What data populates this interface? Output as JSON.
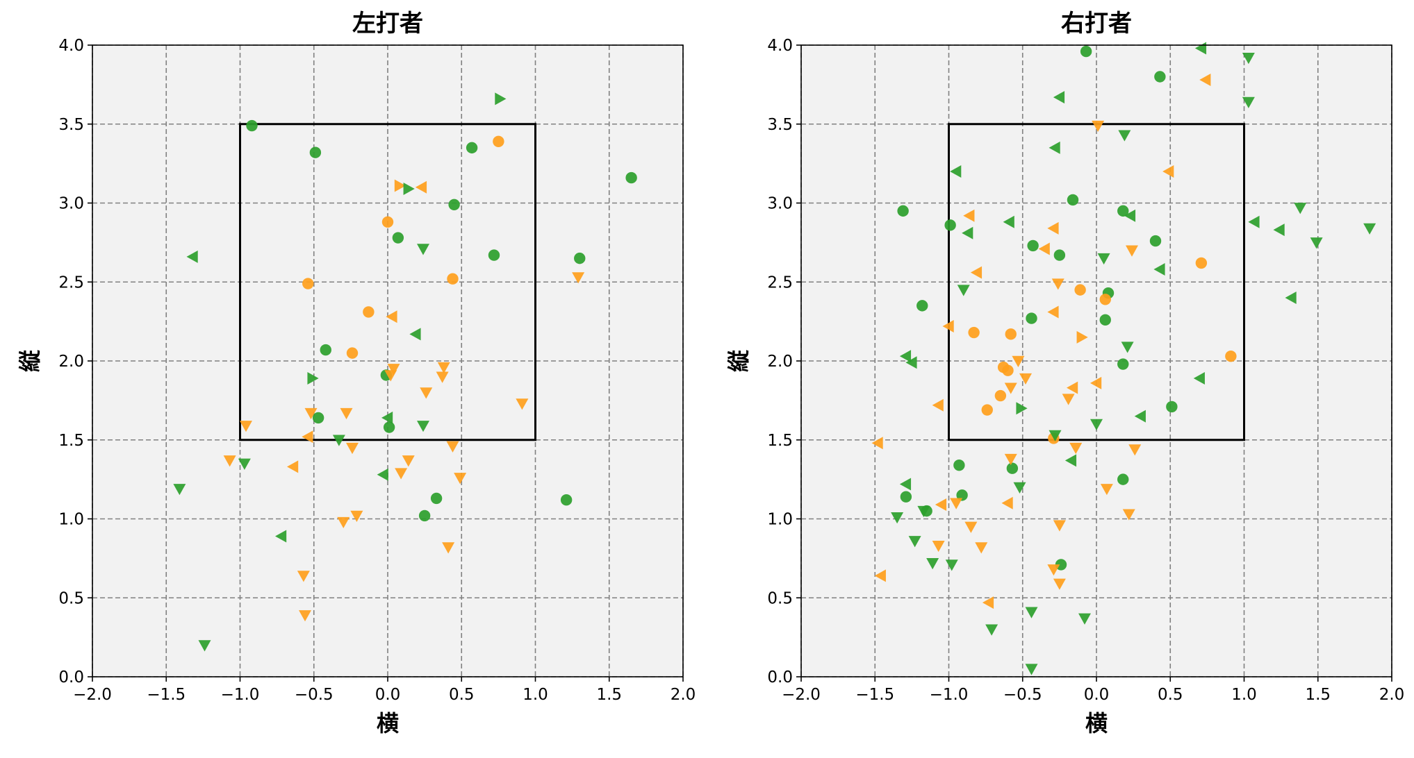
{
  "chart_data": [
    {
      "type": "scatter",
      "title": "左打者",
      "xlabel": "横",
      "ylabel": "縦",
      "xlim": [
        -2.0,
        2.0
      ],
      "ylim": [
        0.0,
        4.0
      ],
      "x_ticks": [
        "−2.0",
        "−1.5",
        "−1.0",
        "−0.5",
        "0.0",
        "0.5",
        "1.0",
        "1.5",
        "2.0"
      ],
      "y_ticks": [
        "0.0",
        "0.5",
        "1.0",
        "1.5",
        "2.0",
        "2.5",
        "3.0",
        "3.5",
        "4.0"
      ],
      "grid": true,
      "strike_zone": {
        "x": [
          -1.0,
          1.0
        ],
        "y": [
          1.5,
          3.5
        ]
      },
      "colors": {
        "green": "#2ca02c",
        "orange": "#ff9f1c",
        "background": "#f2f2f2"
      },
      "points": [
        {
          "x": -0.92,
          "y": 3.49,
          "m": "o",
          "c": "green"
        },
        {
          "x": -0.49,
          "y": 3.32,
          "m": "o",
          "c": "green"
        },
        {
          "x": 0.57,
          "y": 3.35,
          "m": "o",
          "c": "green"
        },
        {
          "x": 0.75,
          "y": 3.39,
          "m": "o",
          "c": "orange"
        },
        {
          "x": 1.65,
          "y": 3.16,
          "m": "o",
          "c": "green"
        },
        {
          "x": 0.45,
          "y": 2.99,
          "m": "o",
          "c": "green"
        },
        {
          "x": 0.0,
          "y": 2.88,
          "m": "o",
          "c": "orange"
        },
        {
          "x": 0.07,
          "y": 2.78,
          "m": "o",
          "c": "green"
        },
        {
          "x": 0.72,
          "y": 2.67,
          "m": "o",
          "c": "green"
        },
        {
          "x": 1.3,
          "y": 2.65,
          "m": "o",
          "c": "green"
        },
        {
          "x": -0.54,
          "y": 2.49,
          "m": "o",
          "c": "orange"
        },
        {
          "x": 0.44,
          "y": 2.52,
          "m": "o",
          "c": "orange"
        },
        {
          "x": -0.13,
          "y": 2.31,
          "m": "o",
          "c": "orange"
        },
        {
          "x": -0.42,
          "y": 2.07,
          "m": "o",
          "c": "green"
        },
        {
          "x": -0.24,
          "y": 2.05,
          "m": "o",
          "c": "orange"
        },
        {
          "x": -0.01,
          "y": 1.91,
          "m": "o",
          "c": "green"
        },
        {
          "x": -0.47,
          "y": 1.64,
          "m": "o",
          "c": "green"
        },
        {
          "x": 0.01,
          "y": 1.58,
          "m": "o",
          "c": "green"
        },
        {
          "x": 0.33,
          "y": 1.13,
          "m": "o",
          "c": "green"
        },
        {
          "x": 0.25,
          "y": 1.02,
          "m": "o",
          "c": "green"
        },
        {
          "x": 1.21,
          "y": 1.12,
          "m": "o",
          "c": "green"
        },
        {
          "x": 0.76,
          "y": 3.66,
          "m": ">",
          "c": "green"
        },
        {
          "x": 0.08,
          "y": 3.11,
          "m": ">",
          "c": "orange"
        },
        {
          "x": 0.14,
          "y": 3.09,
          "m": ">",
          "c": "green"
        },
        {
          "x": 0.23,
          "y": 3.1,
          "m": "<",
          "c": "orange"
        },
        {
          "x": -1.32,
          "y": 2.66,
          "m": "<",
          "c": "green"
        },
        {
          "x": 0.24,
          "y": 2.71,
          "m": "v",
          "c": "green"
        },
        {
          "x": 1.29,
          "y": 2.53,
          "m": "v",
          "c": "orange"
        },
        {
          "x": 0.03,
          "y": 2.28,
          "m": "<",
          "c": "orange"
        },
        {
          "x": 0.19,
          "y": 2.17,
          "m": "<",
          "c": "green"
        },
        {
          "x": 0.38,
          "y": 1.96,
          "m": "v",
          "c": "orange"
        },
        {
          "x": 0.37,
          "y": 1.9,
          "m": "v",
          "c": "orange"
        },
        {
          "x": 0.04,
          "y": 1.95,
          "m": "v",
          "c": "orange"
        },
        {
          "x": 0.02,
          "y": 1.91,
          "m": "v",
          "c": "orange"
        },
        {
          "x": -0.51,
          "y": 1.89,
          "m": ">",
          "c": "green"
        },
        {
          "x": 0.26,
          "y": 1.8,
          "m": "v",
          "c": "orange"
        },
        {
          "x": 0.91,
          "y": 1.73,
          "m": "v",
          "c": "orange"
        },
        {
          "x": -0.52,
          "y": 1.67,
          "m": "v",
          "c": "orange"
        },
        {
          "x": -0.28,
          "y": 1.67,
          "m": "v",
          "c": "orange"
        },
        {
          "x": 0.0,
          "y": 1.64,
          "m": "<",
          "c": "green"
        },
        {
          "x": -0.96,
          "y": 1.59,
          "m": "v",
          "c": "orange"
        },
        {
          "x": 0.24,
          "y": 1.59,
          "m": "v",
          "c": "green"
        },
        {
          "x": -0.54,
          "y": 1.52,
          "m": "<",
          "c": "orange"
        },
        {
          "x": -0.33,
          "y": 1.5,
          "m": "v",
          "c": "green"
        },
        {
          "x": -0.24,
          "y": 1.45,
          "m": "v",
          "c": "orange"
        },
        {
          "x": 0.44,
          "y": 1.46,
          "m": "v",
          "c": "orange"
        },
        {
          "x": -1.07,
          "y": 1.37,
          "m": "v",
          "c": "orange"
        },
        {
          "x": 0.14,
          "y": 1.37,
          "m": "v",
          "c": "orange"
        },
        {
          "x": -0.97,
          "y": 1.35,
          "m": "v",
          "c": "green"
        },
        {
          "x": -0.64,
          "y": 1.33,
          "m": "<",
          "c": "orange"
        },
        {
          "x": 0.09,
          "y": 1.29,
          "m": "v",
          "c": "orange"
        },
        {
          "x": -0.03,
          "y": 1.28,
          "m": "<",
          "c": "green"
        },
        {
          "x": 0.49,
          "y": 1.26,
          "m": "v",
          "c": "orange"
        },
        {
          "x": -1.41,
          "y": 1.19,
          "m": "v",
          "c": "green"
        },
        {
          "x": -0.21,
          "y": 1.02,
          "m": "v",
          "c": "orange"
        },
        {
          "x": -0.3,
          "y": 0.98,
          "m": "v",
          "c": "orange"
        },
        {
          "x": -0.72,
          "y": 0.89,
          "m": "<",
          "c": "green"
        },
        {
          "x": 0.41,
          "y": 0.82,
          "m": "v",
          "c": "orange"
        },
        {
          "x": -0.57,
          "y": 0.64,
          "m": "v",
          "c": "orange"
        },
        {
          "x": -0.56,
          "y": 0.39,
          "m": "v",
          "c": "orange"
        },
        {
          "x": -1.24,
          "y": 0.2,
          "m": "v",
          "c": "green"
        }
      ]
    },
    {
      "type": "scatter",
      "title": "右打者",
      "xlabel": "横",
      "ylabel": "縦",
      "xlim": [
        -2.0,
        2.0
      ],
      "ylim": [
        0.0,
        4.0
      ],
      "x_ticks": [
        "−2.0",
        "−1.5",
        "−1.0",
        "−0.5",
        "0.0",
        "0.5",
        "1.0",
        "1.5",
        "2.0"
      ],
      "y_ticks": [
        "0.0",
        "0.5",
        "1.0",
        "1.5",
        "2.0",
        "2.5",
        "3.0",
        "3.5",
        "4.0"
      ],
      "grid": true,
      "strike_zone": {
        "x": [
          -1.0,
          1.0
        ],
        "y": [
          1.5,
          3.5
        ]
      },
      "colors": {
        "green": "#2ca02c",
        "orange": "#ff9f1c",
        "background": "#f2f2f2"
      },
      "points": [
        {
          "x": -0.07,
          "y": 3.96,
          "m": "o",
          "c": "green"
        },
        {
          "x": 0.43,
          "y": 3.8,
          "m": "o",
          "c": "green"
        },
        {
          "x": -0.16,
          "y": 3.02,
          "m": "o",
          "c": "green"
        },
        {
          "x": -1.31,
          "y": 2.95,
          "m": "o",
          "c": "green"
        },
        {
          "x": 0.18,
          "y": 2.95,
          "m": "o",
          "c": "green"
        },
        {
          "x": -0.99,
          "y": 2.86,
          "m": "o",
          "c": "green"
        },
        {
          "x": -0.43,
          "y": 2.73,
          "m": "o",
          "c": "green"
        },
        {
          "x": -0.25,
          "y": 2.67,
          "m": "o",
          "c": "green"
        },
        {
          "x": 0.4,
          "y": 2.76,
          "m": "o",
          "c": "green"
        },
        {
          "x": 0.71,
          "y": 2.62,
          "m": "o",
          "c": "orange"
        },
        {
          "x": -0.11,
          "y": 2.45,
          "m": "o",
          "c": "orange"
        },
        {
          "x": 0.08,
          "y": 2.43,
          "m": "o",
          "c": "green"
        },
        {
          "x": 0.06,
          "y": 2.39,
          "m": "o",
          "c": "orange"
        },
        {
          "x": -1.18,
          "y": 2.35,
          "m": "o",
          "c": "green"
        },
        {
          "x": -0.44,
          "y": 2.27,
          "m": "o",
          "c": "green"
        },
        {
          "x": 0.06,
          "y": 2.26,
          "m": "o",
          "c": "green"
        },
        {
          "x": -0.83,
          "y": 2.18,
          "m": "o",
          "c": "orange"
        },
        {
          "x": -0.58,
          "y": 2.17,
          "m": "o",
          "c": "orange"
        },
        {
          "x": 0.91,
          "y": 2.03,
          "m": "o",
          "c": "orange"
        },
        {
          "x": 0.18,
          "y": 1.98,
          "m": "o",
          "c": "green"
        },
        {
          "x": -0.63,
          "y": 1.96,
          "m": "o",
          "c": "orange"
        },
        {
          "x": -0.6,
          "y": 1.94,
          "m": "o",
          "c": "orange"
        },
        {
          "x": -0.65,
          "y": 1.78,
          "m": "o",
          "c": "orange"
        },
        {
          "x": 0.51,
          "y": 1.71,
          "m": "o",
          "c": "green"
        },
        {
          "x": -0.74,
          "y": 1.69,
          "m": "o",
          "c": "orange"
        },
        {
          "x": -0.29,
          "y": 1.51,
          "m": "o",
          "c": "orange"
        },
        {
          "x": -0.93,
          "y": 1.34,
          "m": "o",
          "c": "green"
        },
        {
          "x": -0.57,
          "y": 1.32,
          "m": "o",
          "c": "green"
        },
        {
          "x": 0.18,
          "y": 1.25,
          "m": "o",
          "c": "green"
        },
        {
          "x": -0.91,
          "y": 1.15,
          "m": "o",
          "c": "green"
        },
        {
          "x": -1.29,
          "y": 1.14,
          "m": "o",
          "c": "green"
        },
        {
          "x": -1.15,
          "y": 1.05,
          "m": "o",
          "c": "green"
        },
        {
          "x": -0.24,
          "y": 0.71,
          "m": "o",
          "c": "green"
        },
        {
          "x": 0.71,
          "y": 3.98,
          "m": "<",
          "c": "green"
        },
        {
          "x": 1.03,
          "y": 3.92,
          "m": "v",
          "c": "green"
        },
        {
          "x": 0.74,
          "y": 3.78,
          "m": "<",
          "c": "orange"
        },
        {
          "x": -0.25,
          "y": 3.67,
          "m": "<",
          "c": "green"
        },
        {
          "x": 1.03,
          "y": 3.64,
          "m": "v",
          "c": "green"
        },
        {
          "x": 0.01,
          "y": 3.49,
          "m": "v",
          "c": "orange"
        },
        {
          "x": 0.19,
          "y": 3.43,
          "m": "v",
          "c": "green"
        },
        {
          "x": -0.28,
          "y": 3.35,
          "m": "<",
          "c": "green"
        },
        {
          "x": -0.95,
          "y": 3.2,
          "m": "<",
          "c": "green"
        },
        {
          "x": 0.49,
          "y": 3.2,
          "m": "<",
          "c": "orange"
        },
        {
          "x": 1.38,
          "y": 2.97,
          "m": "v",
          "c": "green"
        },
        {
          "x": -0.86,
          "y": 2.92,
          "m": "<",
          "c": "orange"
        },
        {
          "x": 0.23,
          "y": 2.92,
          "m": "<",
          "c": "green"
        },
        {
          "x": 1.07,
          "y": 2.88,
          "m": "<",
          "c": "green"
        },
        {
          "x": -0.59,
          "y": 2.88,
          "m": "<",
          "c": "green"
        },
        {
          "x": 1.85,
          "y": 2.84,
          "m": "v",
          "c": "green"
        },
        {
          "x": -0.29,
          "y": 2.84,
          "m": "<",
          "c": "orange"
        },
        {
          "x": 1.24,
          "y": 2.83,
          "m": "<",
          "c": "green"
        },
        {
          "x": -0.87,
          "y": 2.81,
          "m": "<",
          "c": "green"
        },
        {
          "x": 1.49,
          "y": 2.75,
          "m": "v",
          "c": "green"
        },
        {
          "x": -0.35,
          "y": 2.71,
          "m": "<",
          "c": "orange"
        },
        {
          "x": 0.24,
          "y": 2.7,
          "m": "v",
          "c": "orange"
        },
        {
          "x": 0.05,
          "y": 2.65,
          "m": "v",
          "c": "green"
        },
        {
          "x": 0.43,
          "y": 2.58,
          "m": "<",
          "c": "green"
        },
        {
          "x": -0.81,
          "y": 2.56,
          "m": "<",
          "c": "orange"
        },
        {
          "x": -0.26,
          "y": 2.49,
          "m": "v",
          "c": "orange"
        },
        {
          "x": -0.9,
          "y": 2.45,
          "m": "v",
          "c": "green"
        },
        {
          "x": 1.32,
          "y": 2.4,
          "m": "<",
          "c": "green"
        },
        {
          "x": -0.29,
          "y": 2.31,
          "m": "<",
          "c": "orange"
        },
        {
          "x": -1.0,
          "y": 2.22,
          "m": "<",
          "c": "orange"
        },
        {
          "x": -0.1,
          "y": 2.15,
          "m": ">",
          "c": "orange"
        },
        {
          "x": 0.21,
          "y": 2.09,
          "m": "v",
          "c": "green"
        },
        {
          "x": -1.29,
          "y": 2.03,
          "m": "<",
          "c": "green"
        },
        {
          "x": -0.53,
          "y": 2.0,
          "m": "v",
          "c": "orange"
        },
        {
          "x": -1.25,
          "y": 1.99,
          "m": "<",
          "c": "green"
        },
        {
          "x": -0.48,
          "y": 1.89,
          "m": "v",
          "c": "orange"
        },
        {
          "x": 0.7,
          "y": 1.89,
          "m": "<",
          "c": "green"
        },
        {
          "x": 0.0,
          "y": 1.86,
          "m": "<",
          "c": "orange"
        },
        {
          "x": -0.58,
          "y": 1.83,
          "m": "v",
          "c": "orange"
        },
        {
          "x": -0.16,
          "y": 1.83,
          "m": "<",
          "c": "orange"
        },
        {
          "x": -0.19,
          "y": 1.76,
          "m": "v",
          "c": "orange"
        },
        {
          "x": -1.07,
          "y": 1.72,
          "m": "<",
          "c": "orange"
        },
        {
          "x": -0.51,
          "y": 1.7,
          "m": ">",
          "c": "green"
        },
        {
          "x": 0.3,
          "y": 1.65,
          "m": "<",
          "c": "green"
        },
        {
          "x": 0.0,
          "y": 1.6,
          "m": "v",
          "c": "green"
        },
        {
          "x": -0.28,
          "y": 1.53,
          "m": "v",
          "c": "green"
        },
        {
          "x": -1.48,
          "y": 1.48,
          "m": "<",
          "c": "orange"
        },
        {
          "x": -0.14,
          "y": 1.45,
          "m": "v",
          "c": "orange"
        },
        {
          "x": 0.26,
          "y": 1.44,
          "m": "v",
          "c": "orange"
        },
        {
          "x": -0.58,
          "y": 1.38,
          "m": "v",
          "c": "orange"
        },
        {
          "x": -0.17,
          "y": 1.37,
          "m": "<",
          "c": "green"
        },
        {
          "x": -1.29,
          "y": 1.22,
          "m": "<",
          "c": "green"
        },
        {
          "x": -0.52,
          "y": 1.2,
          "m": "v",
          "c": "green"
        },
        {
          "x": 0.07,
          "y": 1.19,
          "m": "v",
          "c": "orange"
        },
        {
          "x": -0.6,
          "y": 1.1,
          "m": "<",
          "c": "orange"
        },
        {
          "x": -0.95,
          "y": 1.1,
          "m": "v",
          "c": "orange"
        },
        {
          "x": -1.05,
          "y": 1.09,
          "m": "<",
          "c": "orange"
        },
        {
          "x": -1.17,
          "y": 1.05,
          "m": "v",
          "c": "green"
        },
        {
          "x": 0.22,
          "y": 1.03,
          "m": "v",
          "c": "orange"
        },
        {
          "x": -1.35,
          "y": 1.01,
          "m": "v",
          "c": "green"
        },
        {
          "x": -0.25,
          "y": 0.96,
          "m": "v",
          "c": "orange"
        },
        {
          "x": -0.85,
          "y": 0.95,
          "m": "v",
          "c": "orange"
        },
        {
          "x": -1.23,
          "y": 0.86,
          "m": "v",
          "c": "green"
        },
        {
          "x": -1.07,
          "y": 0.83,
          "m": "v",
          "c": "orange"
        },
        {
          "x": -0.78,
          "y": 0.82,
          "m": "v",
          "c": "orange"
        },
        {
          "x": -1.11,
          "y": 0.72,
          "m": "v",
          "c": "green"
        },
        {
          "x": -0.98,
          "y": 0.71,
          "m": "v",
          "c": "green"
        },
        {
          "x": -0.29,
          "y": 0.68,
          "m": "v",
          "c": "orange"
        },
        {
          "x": -1.46,
          "y": 0.64,
          "m": "<",
          "c": "orange"
        },
        {
          "x": -0.25,
          "y": 0.59,
          "m": "v",
          "c": "orange"
        },
        {
          "x": -0.73,
          "y": 0.47,
          "m": "<",
          "c": "orange"
        },
        {
          "x": -0.44,
          "y": 0.41,
          "m": "v",
          "c": "green"
        },
        {
          "x": -0.08,
          "y": 0.37,
          "m": "v",
          "c": "green"
        },
        {
          "x": -0.71,
          "y": 0.3,
          "m": "v",
          "c": "green"
        },
        {
          "x": -0.44,
          "y": 0.05,
          "m": "v",
          "c": "green"
        }
      ]
    }
  ]
}
